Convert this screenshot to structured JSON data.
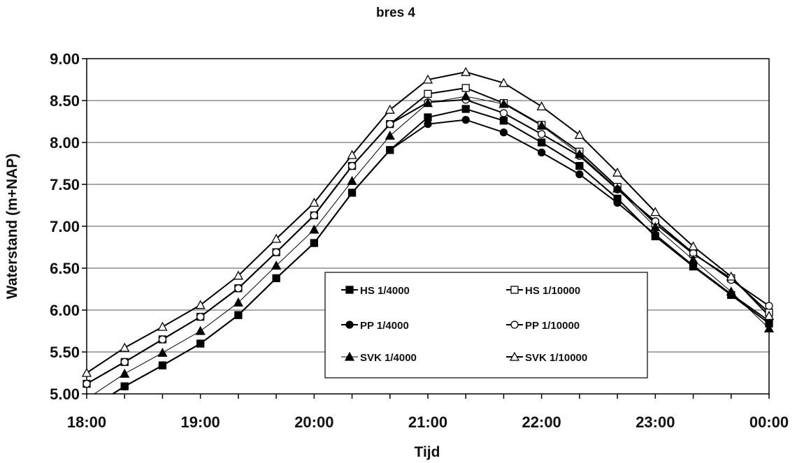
{
  "chart_data": {
    "type": "line",
    "title": "bres 4",
    "xlabel": "Tijd",
    "ylabel": "Waterstand (m+NAP)",
    "x": [
      "18:00",
      "18:20",
      "18:40",
      "19:00",
      "19:20",
      "19:40",
      "20:00",
      "20:20",
      "20:40",
      "21:00",
      "21:20",
      "21:40",
      "22:00",
      "22:20",
      "22:40",
      "23:00",
      "23:20",
      "23:40",
      "00:00"
    ],
    "xtick_labels": [
      "18:00",
      "19:00",
      "20:00",
      "21:00",
      "22:00",
      "23:00",
      "00:00"
    ],
    "ylim": [
      5.0,
      9.0
    ],
    "yticks": [
      "5.00",
      "5.50",
      "6.00",
      "6.50",
      "7.00",
      "7.50",
      "8.00",
      "8.50",
      "9.00"
    ],
    "grid": "horizontal",
    "legend_position": "bottom-right",
    "series": [
      {
        "name": "HS 1/4000",
        "marker": "square-filled",
        "line_weight": "heavy",
        "values": [
          4.8,
          5.09,
          5.34,
          5.6,
          5.94,
          6.38,
          6.8,
          7.4,
          7.91,
          8.3,
          8.4,
          8.26,
          8.0,
          7.72,
          7.33,
          6.88,
          6.52,
          6.18,
          5.84
        ]
      },
      {
        "name": "HS 1/10000",
        "marker": "square-open",
        "line_weight": "heavy",
        "values": [
          5.12,
          5.38,
          5.65,
          5.92,
          6.26,
          6.69,
          7.13,
          7.72,
          8.22,
          8.58,
          8.65,
          8.47,
          8.21,
          7.89,
          7.47,
          7.03,
          6.67,
          6.38,
          5.97
        ]
      },
      {
        "name": "PP 1/4000",
        "marker": "circle-filled",
        "line_weight": "heavy",
        "values": [
          4.8,
          5.09,
          5.34,
          5.6,
          5.94,
          6.38,
          6.8,
          7.4,
          7.91,
          8.22,
          8.27,
          8.12,
          7.88,
          7.62,
          7.28,
          6.9,
          6.53,
          6.19,
          5.87
        ]
      },
      {
        "name": "PP 1/10000",
        "marker": "circle-open",
        "line_weight": "heavy",
        "values": [
          5.12,
          5.38,
          5.65,
          5.92,
          6.26,
          6.69,
          7.13,
          7.72,
          8.22,
          8.48,
          8.51,
          8.35,
          8.1,
          7.84,
          7.44,
          7.06,
          6.68,
          6.36,
          6.05
        ]
      },
      {
        "name": "SVK 1/4000",
        "marker": "triangle-filled",
        "line_weight": "light",
        "values": [
          4.94,
          5.24,
          5.49,
          5.75,
          6.09,
          6.53,
          6.96,
          7.54,
          8.08,
          8.47,
          8.55,
          8.46,
          8.2,
          7.86,
          7.45,
          6.99,
          6.6,
          6.22,
          5.78
        ]
      },
      {
        "name": "SVK 1/10000",
        "marker": "triangle-open",
        "line_weight": "heavy",
        "values": [
          5.25,
          5.55,
          5.8,
          6.06,
          6.41,
          6.85,
          7.28,
          7.85,
          8.39,
          8.75,
          8.84,
          8.71,
          8.43,
          8.09,
          7.64,
          7.17,
          6.76,
          6.4,
          5.93
        ]
      }
    ]
  }
}
